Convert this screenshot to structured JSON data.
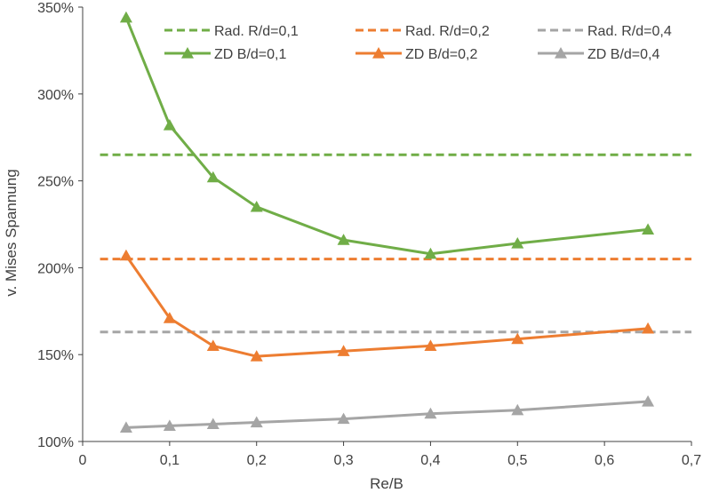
{
  "chart_data": {
    "type": "line",
    "title": "",
    "xlabel": "Re/B",
    "ylabel": "v. Mises Spannung",
    "xlim": [
      0,
      0.7
    ],
    "ylim": [
      100,
      350
    ],
    "x_ticks": [
      0,
      0.1,
      0.2,
      0.3,
      0.4,
      0.5,
      0.6,
      0.7
    ],
    "x_tick_labels": [
      "0",
      "0,1",
      "0,2",
      "0,3",
      "0,4",
      "0,5",
      "0,6",
      "0,7"
    ],
    "y_ticks": [
      100,
      150,
      200,
      250,
      300,
      350
    ],
    "y_tick_labels": [
      "100%",
      "150%",
      "200%",
      "250%",
      "300%",
      "350%"
    ],
    "grid": false,
    "legend_position": "top",
    "series": [
      {
        "name": "Rad. R/d=0,1",
        "style": "dashed",
        "color": "#70ad47",
        "marker": "none",
        "x": [
          0.02,
          0.7
        ],
        "values": [
          265,
          265
        ]
      },
      {
        "name": "Rad. R/d=0,2",
        "style": "dashed",
        "color": "#ed7d31",
        "marker": "none",
        "x": [
          0.02,
          0.7
        ],
        "values": [
          205,
          205
        ]
      },
      {
        "name": "Rad. R/d=0,4",
        "style": "dashed",
        "color": "#a5a5a5",
        "marker": "none",
        "x": [
          0.02,
          0.7
        ],
        "values": [
          163,
          163
        ]
      },
      {
        "name": "ZD    B/d=0,1",
        "style": "solid",
        "color": "#70ad47",
        "marker": "triangle",
        "x": [
          0.05,
          0.1,
          0.15,
          0.2,
          0.3,
          0.4,
          0.5,
          0.65
        ],
        "values": [
          344,
          282,
          252,
          235,
          216,
          208,
          214,
          222
        ]
      },
      {
        "name": "ZD    B/d=0,2",
        "style": "solid",
        "color": "#ed7d31",
        "marker": "triangle",
        "x": [
          0.05,
          0.1,
          0.15,
          0.2,
          0.3,
          0.4,
          0.5,
          0.65
        ],
        "values": [
          207,
          171,
          155,
          149,
          152,
          155,
          159,
          165
        ]
      },
      {
        "name": "ZD    B/d=0,4",
        "style": "solid",
        "color": "#a5a5a5",
        "marker": "triangle",
        "x": [
          0.05,
          0.1,
          0.15,
          0.2,
          0.3,
          0.4,
          0.5,
          0.65
        ],
        "values": [
          108,
          109,
          110,
          111,
          113,
          116,
          118,
          123
        ]
      }
    ]
  }
}
